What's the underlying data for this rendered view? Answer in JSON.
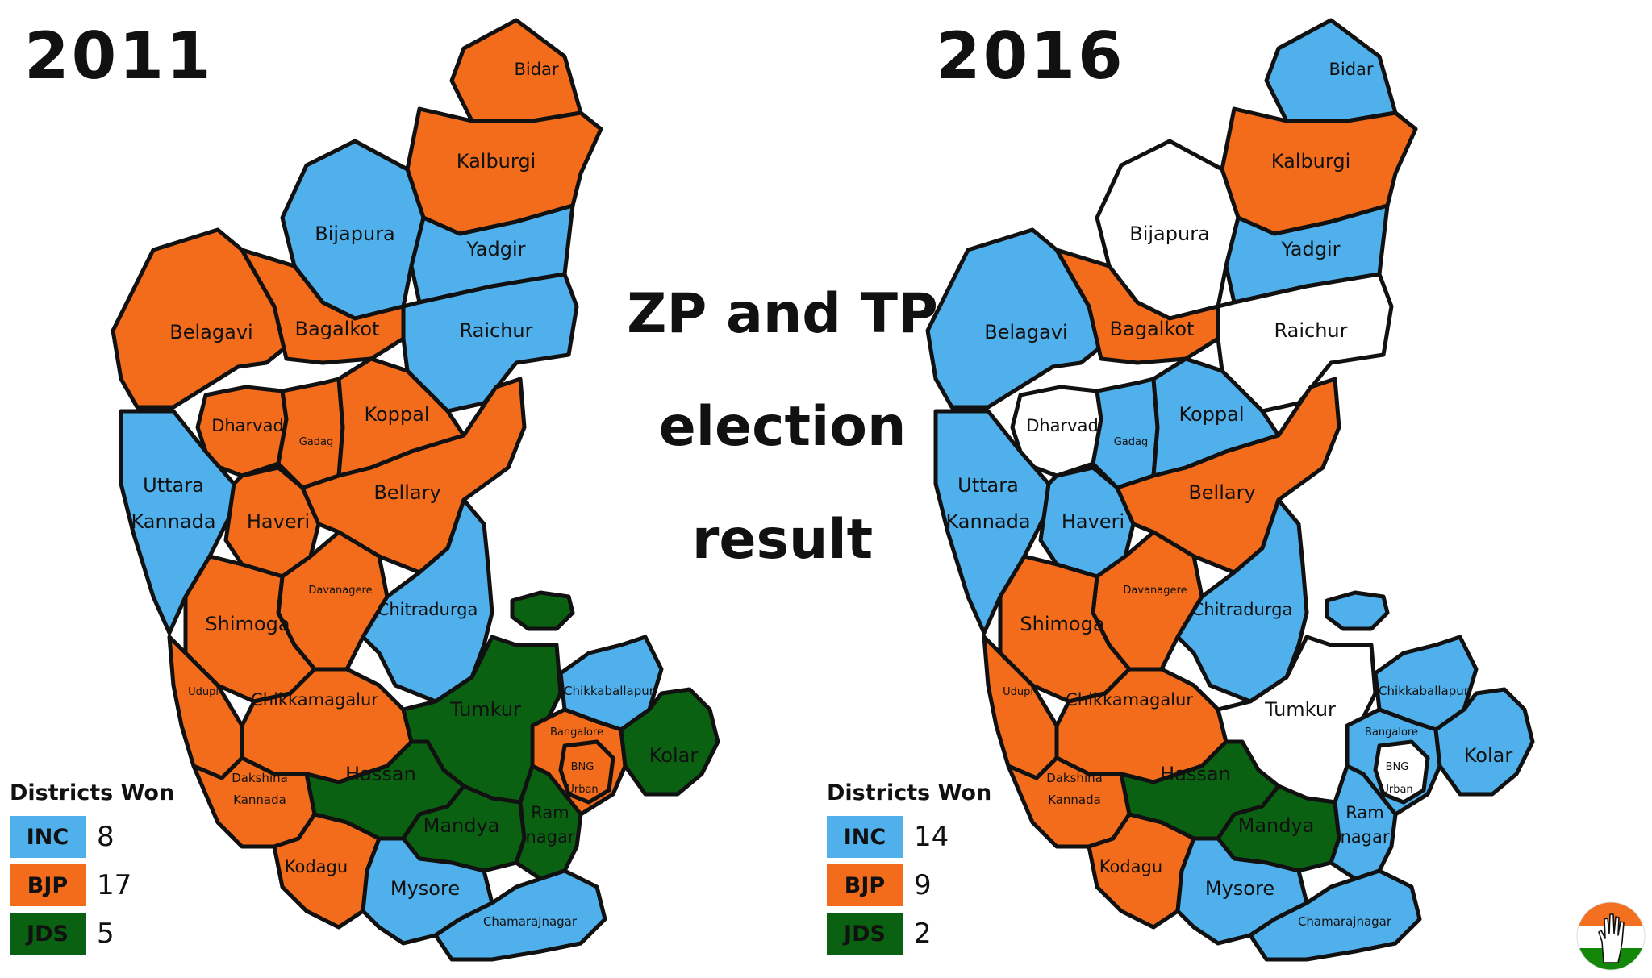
{
  "colors": {
    "INC": "#4fb0eb",
    "BJP": "#f36c1b",
    "JDS": "#0b6112",
    "NONE": "#ffffff"
  },
  "title": {
    "line1": "ZP and TP",
    "line2": "election",
    "line3": "result"
  },
  "maps": [
    {
      "year": "2011",
      "legend": {
        "heading": "Districts Won",
        "rows": [
          {
            "party": "INC",
            "count": "8"
          },
          {
            "party": "BJP",
            "count": "17"
          },
          {
            "party": "JDS",
            "count": "5"
          }
        ]
      },
      "winners": {
        "bidar": "BJP",
        "kalburgi": "BJP",
        "bijapura": "INC",
        "yadgir": "INC",
        "raichur": "INC",
        "belagavi": "BJP",
        "bagalkot": "BJP",
        "dharvad": "BJP",
        "gadag": "BJP",
        "koppal": "BJP",
        "uttara_kannada": "INC",
        "haveri": "BJP",
        "bellary": "BJP",
        "davanagere": "BJP",
        "shimoga": "BJP",
        "chitradurga": "INC",
        "udupi": "BJP",
        "chikkamagalur": "BJP",
        "tumkur": "JDS",
        "chikkaballapur": "INC",
        "bangalore_rural": "BJP",
        "bng_urban": "BJP",
        "kolar": "JDS",
        "hassan": "JDS",
        "mandya": "JDS",
        "ramnagar": "JDS",
        "dakshina_kannada": "BJP",
        "kodagu": "BJP",
        "mysore": "INC",
        "chamarajnagar": "INC",
        "enclave": "JDS"
      }
    },
    {
      "year": "2016",
      "legend": {
        "heading": "Districts Won",
        "rows": [
          {
            "party": "INC",
            "count": "14"
          },
          {
            "party": "BJP",
            "count": "9"
          },
          {
            "party": "JDS",
            "count": "2"
          }
        ]
      },
      "winners": {
        "bidar": "INC",
        "kalburgi": "BJP",
        "bijapura": "NONE",
        "yadgir": "INC",
        "raichur": "NONE",
        "belagavi": "INC",
        "bagalkot": "BJP",
        "dharvad": "NONE",
        "gadag": "INC",
        "koppal": "INC",
        "uttara_kannada": "INC",
        "haveri": "INC",
        "bellary": "BJP",
        "davanagere": "BJP",
        "shimoga": "BJP",
        "chitradurga": "INC",
        "udupi": "BJP",
        "chikkamagalur": "BJP",
        "tumkur": "NONE",
        "chikkaballapur": "INC",
        "bangalore_rural": "INC",
        "bng_urban": "NONE",
        "kolar": "INC",
        "hassan": "JDS",
        "mandya": "JDS",
        "ramnagar": "INC",
        "dakshina_kannada": "BJP",
        "kodagu": "BJP",
        "mysore": "INC",
        "chamarajnagar": "INC",
        "enclave": "INC"
      }
    }
  ],
  "labels": {
    "bidar": "Bidar",
    "kalburgi": "Kalburgi",
    "bijapura": "Bijapura",
    "yadgir": "Yadgir",
    "raichur": "Raichur",
    "belagavi": "Belagavi",
    "bagalkot": "Bagalkot",
    "dharvad": "Dharvad",
    "gadag": "Gadag",
    "koppal": "Koppal",
    "uttara_1": "Uttara",
    "kannada_1": "Kannada",
    "haveri": "Haveri",
    "bellary": "Bellary",
    "davanagere": "Davanagere",
    "shimoga": "Shimoga",
    "chitradurga": "Chitradurga",
    "udupi": "Udupi",
    "chikkamagalur": "Chikkamagalur",
    "tumkur": "Tumkur",
    "chikkaballapur": "Chikkaballapur",
    "bangalore": "Bangalore",
    "bng": "BNG",
    "urban": "Urban",
    "kolar": "Kolar",
    "hassan": "Hassan",
    "mandya": "Mandya",
    "ram": "Ram",
    "nagar": "nagar",
    "dakshina": "Dakshina",
    "kannada_2": "Kannada",
    "kodagu": "Kodagu",
    "mysore": "Mysore",
    "chamarajnagar": "Chamarajnagar"
  },
  "logo": {
    "icon": "congress-hand-icon"
  }
}
